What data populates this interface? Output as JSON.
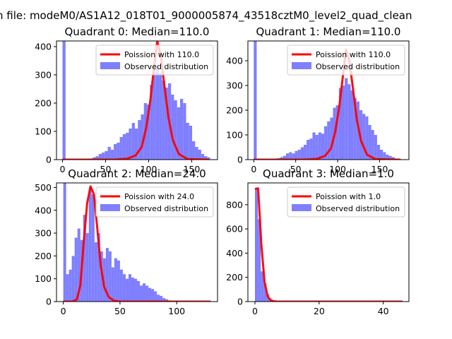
{
  "figure": {
    "suptitle": "n file: modeM0/AS1A12_018T01_9000005874_43518cztM0_level2_quad_clean",
    "colors": {
      "histogram": "#7f7fff",
      "poisson_line": "#ff0000",
      "axes": "#000000",
      "background": "#ffffff"
    }
  },
  "chart_data": [
    {
      "type": "bar",
      "title": "Quadrant 0: Median=110.0",
      "xlim": [
        -7,
        180
      ],
      "ylim": [
        0,
        420
      ],
      "xticks": [
        0,
        50,
        100,
        150
      ],
      "yticks": [
        0,
        100,
        200,
        300,
        400
      ],
      "legend_position": "upper right",
      "series": [
        {
          "name": "Poission with 110.0",
          "kind": "line",
          "x": [
            0,
            60,
            75,
            85,
            92,
            97,
            102,
            106,
            110,
            114,
            118,
            123,
            128,
            135,
            145,
            170
          ],
          "y": [
            0,
            0,
            3,
            15,
            45,
            110,
            210,
            320,
            420,
            370,
            270,
            150,
            70,
            20,
            2,
            0
          ]
        },
        {
          "name": "Observed distribution",
          "kind": "hist",
          "bin_width": 3.5,
          "bins": [
            {
              "x": 0,
              "y": 420
            },
            {
              "x": 28,
              "y": 2
            },
            {
              "x": 31.5,
              "y": 4
            },
            {
              "x": 35,
              "y": 8
            },
            {
              "x": 38.5,
              "y": 12
            },
            {
              "x": 42,
              "y": 20
            },
            {
              "x": 45.5,
              "y": 25
            },
            {
              "x": 49,
              "y": 30
            },
            {
              "x": 52.5,
              "y": 45
            },
            {
              "x": 56,
              "y": 35
            },
            {
              "x": 59.5,
              "y": 55
            },
            {
              "x": 63,
              "y": 60
            },
            {
              "x": 66.5,
              "y": 80
            },
            {
              "x": 70,
              "y": 90
            },
            {
              "x": 73.5,
              "y": 95
            },
            {
              "x": 77,
              "y": 110
            },
            {
              "x": 80.5,
              "y": 130
            },
            {
              "x": 84,
              "y": 110
            },
            {
              "x": 87.5,
              "y": 140
            },
            {
              "x": 91,
              "y": 160
            },
            {
              "x": 94.5,
              "y": 200
            },
            {
              "x": 98,
              "y": 195
            },
            {
              "x": 101.5,
              "y": 265
            },
            {
              "x": 105,
              "y": 310
            },
            {
              "x": 108.5,
              "y": 330
            },
            {
              "x": 112,
              "y": 305
            },
            {
              "x": 115.5,
              "y": 280
            },
            {
              "x": 119,
              "y": 255
            },
            {
              "x": 122.5,
              "y": 270
            },
            {
              "x": 126,
              "y": 230
            },
            {
              "x": 129.5,
              "y": 210
            },
            {
              "x": 133,
              "y": 185
            },
            {
              "x": 136.5,
              "y": 215
            },
            {
              "x": 140,
              "y": 200
            },
            {
              "x": 143.5,
              "y": 130
            },
            {
              "x": 147,
              "y": 120
            },
            {
              "x": 150.5,
              "y": 65
            },
            {
              "x": 154,
              "y": 45
            },
            {
              "x": 157.5,
              "y": 35
            },
            {
              "x": 161,
              "y": 20
            },
            {
              "x": 164.5,
              "y": 12
            },
            {
              "x": 168,
              "y": 8
            }
          ]
        }
      ]
    },
    {
      "type": "bar",
      "title": "Quadrant 1: Median=110.0",
      "xlim": [
        -7,
        185
      ],
      "ylim": [
        0,
        480
      ],
      "xticks": [
        0,
        50,
        100,
        150
      ],
      "yticks": [
        0,
        100,
        200,
        300,
        400
      ],
      "legend_position": "upper right",
      "series": [
        {
          "name": "Poission with 110.0",
          "kind": "line",
          "x": [
            0,
            60,
            75,
            85,
            92,
            97,
            102,
            106,
            110,
            114,
            118,
            123,
            128,
            135,
            145,
            175
          ],
          "y": [
            0,
            0,
            3,
            15,
            45,
            110,
            215,
            330,
            445,
            400,
            295,
            160,
            75,
            20,
            2,
            0
          ]
        },
        {
          "name": "Observed distribution",
          "kind": "hist",
          "bin_width": 3.5,
          "bins": [
            {
              "x": 0,
              "y": 480
            },
            {
              "x": 21,
              "y": 2
            },
            {
              "x": 24.5,
              "y": 4
            },
            {
              "x": 28,
              "y": 6
            },
            {
              "x": 31.5,
              "y": 10
            },
            {
              "x": 35,
              "y": 15
            },
            {
              "x": 38.5,
              "y": 25
            },
            {
              "x": 42,
              "y": 30
            },
            {
              "x": 45.5,
              "y": 25
            },
            {
              "x": 49,
              "y": 35
            },
            {
              "x": 52.5,
              "y": 40
            },
            {
              "x": 56,
              "y": 50
            },
            {
              "x": 59.5,
              "y": 60
            },
            {
              "x": 63,
              "y": 80
            },
            {
              "x": 66.5,
              "y": 85
            },
            {
              "x": 70,
              "y": 110
            },
            {
              "x": 73.5,
              "y": 100
            },
            {
              "x": 77,
              "y": 110
            },
            {
              "x": 80.5,
              "y": 105
            },
            {
              "x": 84,
              "y": 135
            },
            {
              "x": 87.5,
              "y": 155
            },
            {
              "x": 91,
              "y": 170
            },
            {
              "x": 94.5,
              "y": 210
            },
            {
              "x": 98,
              "y": 220
            },
            {
              "x": 101.5,
              "y": 290
            },
            {
              "x": 105,
              "y": 300
            },
            {
              "x": 108.5,
              "y": 330
            },
            {
              "x": 112,
              "y": 305
            },
            {
              "x": 115.5,
              "y": 280
            },
            {
              "x": 119,
              "y": 250
            },
            {
              "x": 122.5,
              "y": 235
            },
            {
              "x": 126,
              "y": 200
            },
            {
              "x": 129.5,
              "y": 185
            },
            {
              "x": 133,
              "y": 175
            },
            {
              "x": 136.5,
              "y": 140
            },
            {
              "x": 140,
              "y": 120
            },
            {
              "x": 143.5,
              "y": 100
            },
            {
              "x": 147,
              "y": 60
            },
            {
              "x": 150.5,
              "y": 40
            },
            {
              "x": 154,
              "y": 30
            },
            {
              "x": 157.5,
              "y": 20
            },
            {
              "x": 161,
              "y": 15
            },
            {
              "x": 164.5,
              "y": 10
            }
          ]
        }
      ]
    },
    {
      "type": "bar",
      "title": "Quadrant 2: Median=24.0",
      "xlim": [
        -6,
        136
      ],
      "ylim": [
        0,
        520
      ],
      "xticks": [
        0,
        50,
        100
      ],
      "yticks": [
        0,
        100,
        200,
        300,
        400,
        500
      ],
      "legend_position": "upper right",
      "series": [
        {
          "name": "Poission with 24.0",
          "kind": "line",
          "x": [
            0,
            8,
            12,
            15,
            18,
            21,
            24,
            27,
            30,
            33,
            36,
            40,
            45,
            50,
            60,
            130
          ],
          "y": [
            0,
            0,
            10,
            70,
            260,
            430,
            505,
            470,
            320,
            160,
            65,
            20,
            3,
            0,
            0,
            0
          ]
        },
        {
          "name": "Observed distribution",
          "kind": "hist",
          "bin_width": 2.5,
          "bins": [
            {
              "x": 0,
              "y": 520
            },
            {
              "x": 2.5,
              "y": 120
            },
            {
              "x": 5,
              "y": 140
            },
            {
              "x": 7.5,
              "y": 200
            },
            {
              "x": 10,
              "y": 280
            },
            {
              "x": 12.5,
              "y": 320
            },
            {
              "x": 15,
              "y": 270
            },
            {
              "x": 17.5,
              "y": 380
            },
            {
              "x": 20,
              "y": 300
            },
            {
              "x": 22.5,
              "y": 500
            },
            {
              "x": 25,
              "y": 470
            },
            {
              "x": 27.5,
              "y": 260
            },
            {
              "x": 30,
              "y": 300
            },
            {
              "x": 32.5,
              "y": 220
            },
            {
              "x": 35,
              "y": 190
            },
            {
              "x": 37.5,
              "y": 235
            },
            {
              "x": 40,
              "y": 220
            },
            {
              "x": 42.5,
              "y": 150
            },
            {
              "x": 45,
              "y": 190
            },
            {
              "x": 47.5,
              "y": 180
            },
            {
              "x": 50,
              "y": 140
            },
            {
              "x": 52.5,
              "y": 120
            },
            {
              "x": 55,
              "y": 100
            },
            {
              "x": 57.5,
              "y": 120
            },
            {
              "x": 60,
              "y": 105
            },
            {
              "x": 62.5,
              "y": 100
            },
            {
              "x": 65,
              "y": 90
            },
            {
              "x": 67.5,
              "y": 70
            },
            {
              "x": 70,
              "y": 80
            },
            {
              "x": 72.5,
              "y": 70
            },
            {
              "x": 75,
              "y": 60
            },
            {
              "x": 77.5,
              "y": 55
            },
            {
              "x": 80,
              "y": 45
            },
            {
              "x": 82.5,
              "y": 30
            },
            {
              "x": 85,
              "y": 25
            },
            {
              "x": 87.5,
              "y": 15
            },
            {
              "x": 90,
              "y": 10
            },
            {
              "x": 92.5,
              "y": 5
            }
          ]
        }
      ]
    },
    {
      "type": "bar",
      "title": "Quadrant 3: Median=1.0",
      "xlim": [
        -2.2,
        48
      ],
      "ylim": [
        0,
        980
      ],
      "xticks": [
        0,
        20,
        40
      ],
      "yticks": [
        0,
        200,
        400,
        600,
        800
      ],
      "legend_position": "upper right",
      "series": [
        {
          "name": "Poission with 1.0",
          "kind": "line",
          "x": [
            0,
            1,
            2,
            3,
            4,
            5,
            6,
            7,
            8,
            10,
            15,
            20,
            30,
            40,
            46
          ],
          "y": [
            930,
            935,
            470,
            160,
            40,
            10,
            2,
            0,
            0,
            0,
            0,
            0,
            0,
            0,
            0
          ]
        },
        {
          "name": "Observed distribution",
          "kind": "hist",
          "bin_width": 0.9,
          "bins": [
            {
              "x": 0,
              "y": 940
            },
            {
              "x": 0.9,
              "y": 680
            },
            {
              "x": 1.8,
              "y": 250
            },
            {
              "x": 2.7,
              "y": 150
            },
            {
              "x": 3.6,
              "y": 60
            },
            {
              "x": 4.5,
              "y": 20
            },
            {
              "x": 5.4,
              "y": 8
            },
            {
              "x": 6.3,
              "y": 4
            },
            {
              "x": 7.2,
              "y": 2
            }
          ]
        }
      ]
    }
  ]
}
